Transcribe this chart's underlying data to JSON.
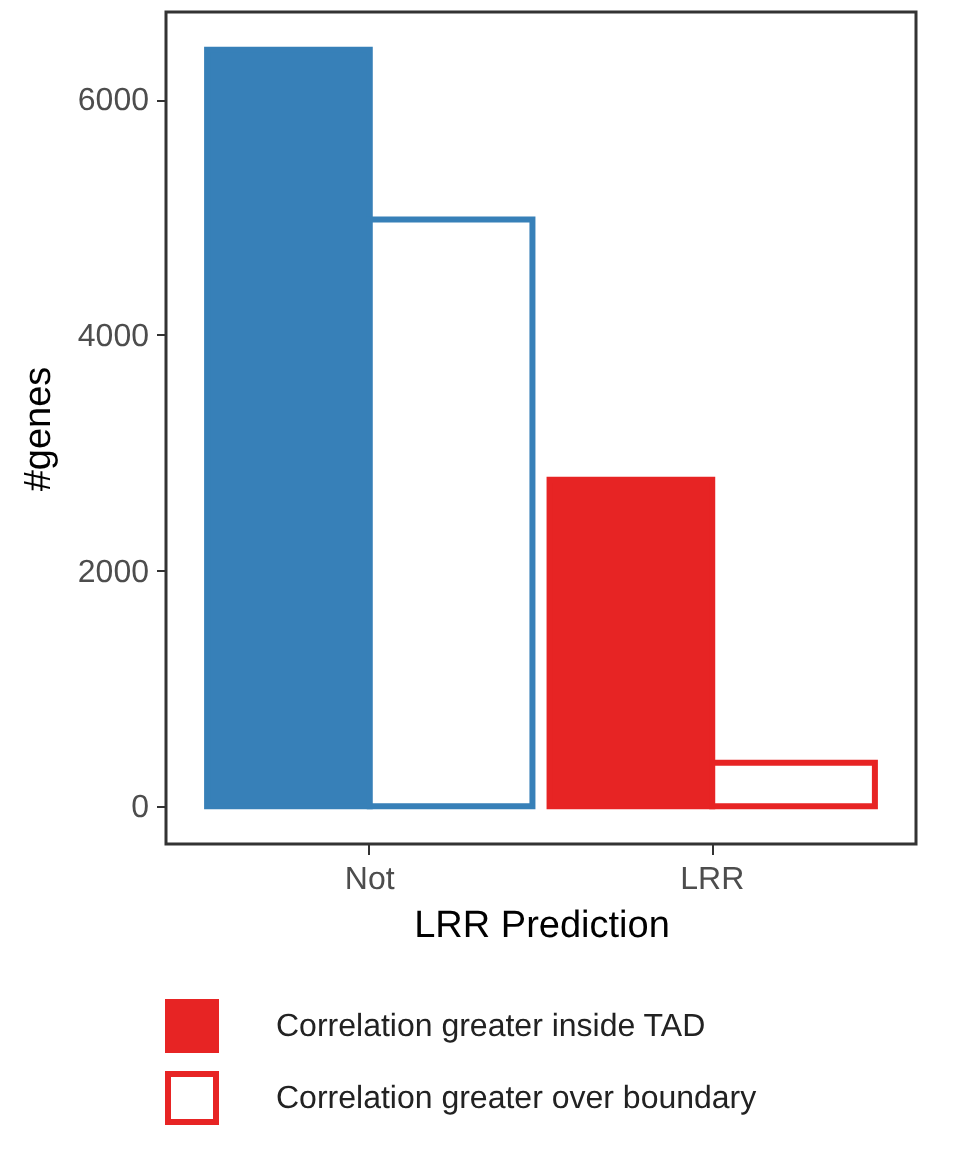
{
  "chart_data": {
    "type": "bar",
    "xlabel": "LRR Prediction",
    "ylabel": "#genes",
    "categories": [
      "Not",
      "LRR"
    ],
    "series": [
      {
        "name": "Correlation greater inside TAD",
        "color": "#e72424",
        "colors": [
          "#3780b8",
          "#e72424"
        ],
        "values": [
          6420,
          2770
        ]
      },
      {
        "name": "Correlation greater over boundary",
        "color": "#e72424",
        "colors": [
          "#3780b8",
          "#e72424"
        ],
        "values": [
          4980,
          370
        ]
      }
    ],
    "ylim": [
      -320,
      6740
    ],
    "yticks": [
      0,
      2000,
      4000,
      6000
    ],
    "grid": false,
    "legend": "bottom"
  }
}
